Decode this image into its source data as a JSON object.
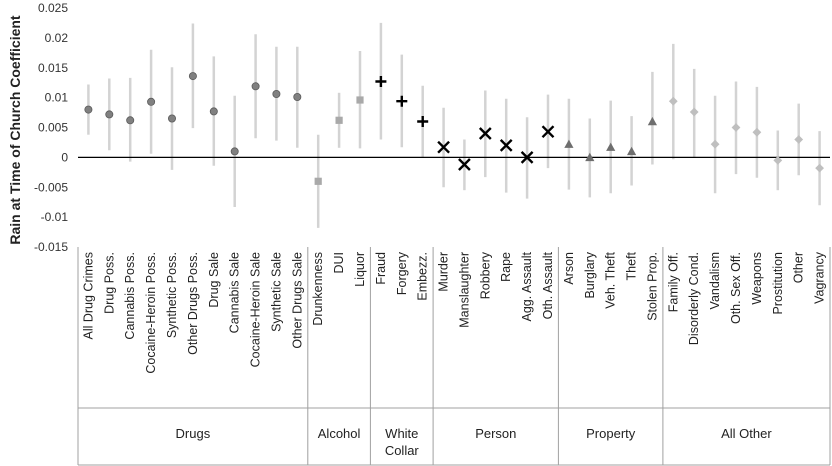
{
  "chart_data": {
    "type": "scatter",
    "ylabel": "Rain at Time of Church Coefficient",
    "ylim": [
      -0.015,
      0.025
    ],
    "yticks": [
      "0.025",
      "0.02",
      "0.015",
      "0.01",
      "0.005",
      "0",
      "-0.005",
      "-0.01",
      "-0.015"
    ],
    "grid": false,
    "groups": [
      {
        "name": "Drugs",
        "lines": [
          "Drugs"
        ],
        "marker": "circle",
        "color": "#808080",
        "items": [
          {
            "label": "All Drug Crimes",
            "value": 0.008,
            "low": 0.0038,
            "high": 0.0122
          },
          {
            "label": "Drug Poss.",
            "value": 0.0072,
            "low": 0.0012,
            "high": 0.0132
          },
          {
            "label": "Cannabis Poss.",
            "value": 0.0062,
            "low": -0.0007,
            "high": 0.0133
          },
          {
            "label": "Cocaine-Heroin Poss.",
            "value": 0.0093,
            "low": 0.0006,
            "high": 0.018
          },
          {
            "label": "Synthetic Poss.",
            "value": 0.0065,
            "low": -0.0021,
            "high": 0.0151
          },
          {
            "label": "Other Drugs Poss.",
            "value": 0.0136,
            "low": 0.0049,
            "high": 0.0224
          },
          {
            "label": "Drug Sale",
            "value": 0.0077,
            "low": -0.0014,
            "high": 0.0169
          },
          {
            "label": "Cannabis Sale",
            "value": 0.001,
            "low": -0.0083,
            "high": 0.0103
          },
          {
            "label": "Cocaine-Heroin Sale",
            "value": 0.0119,
            "low": 0.0032,
            "high": 0.0206
          },
          {
            "label": "Synthetic Sale",
            "value": 0.0106,
            "low": 0.0028,
            "high": 0.0185
          },
          {
            "label": "Other Drugs Sale",
            "value": 0.0101,
            "low": 0.0016,
            "high": 0.0185
          }
        ]
      },
      {
        "name": "Alcohol",
        "lines": [
          "Alcohol"
        ],
        "marker": "square",
        "color": "#a9a9a9",
        "items": [
          {
            "label": "Drunkenness",
            "value": -0.004,
            "low": -0.0118,
            "high": 0.0038
          },
          {
            "label": "DUI",
            "value": 0.0062,
            "low": 0.0016,
            "high": 0.0108
          },
          {
            "label": "Liquor",
            "value": 0.0096,
            "low": 0.0015,
            "high": 0.0178
          }
        ]
      },
      {
        "name": "White Collar",
        "lines": [
          "White",
          "Collar"
        ],
        "marker": "plus",
        "color": "#000000",
        "items": [
          {
            "label": "Fraud",
            "value": 0.0127,
            "low": 0.003,
            "high": 0.0225
          },
          {
            "label": "Forgery",
            "value": 0.0094,
            "low": 0.0017,
            "high": 0.0172
          },
          {
            "label": "Embezz.",
            "value": 0.006,
            "low": 0.0,
            "high": 0.012
          }
        ]
      },
      {
        "name": "Person",
        "lines": [
          "Person"
        ],
        "marker": "x",
        "color": "#000000",
        "items": [
          {
            "label": "Murder",
            "value": 0.0017,
            "low": -0.005,
            "high": 0.0083
          },
          {
            "label": "Manslaughter",
            "value": -0.0012,
            "low": -0.0055,
            "high": 0.003
          },
          {
            "label": "Robbery",
            "value": 0.004,
            "low": -0.0033,
            "high": 0.0112
          },
          {
            "label": "Rape",
            "value": 0.002,
            "low": -0.0059,
            "high": 0.0098
          },
          {
            "label": "Agg. Assault",
            "value": 0.0,
            "low": -0.0069,
            "high": 0.0067
          },
          {
            "label": "Oth. Assault",
            "value": 0.0043,
            "low": -0.0018,
            "high": 0.0105
          }
        ]
      },
      {
        "name": "Property",
        "lines": [
          "Property"
        ],
        "marker": "triangle",
        "color": "#6e6e6e",
        "items": [
          {
            "label": "Arson",
            "value": 0.0022,
            "low": -0.0054,
            "high": 0.0098
          },
          {
            "label": "Burglary",
            "value": 0.0,
            "low": -0.0067,
            "high": 0.0065
          },
          {
            "label": "Veh. Theft",
            "value": 0.0017,
            "low": -0.006,
            "high": 0.0095
          },
          {
            "label": "Theft",
            "value": 0.001,
            "low": -0.0047,
            "high": 0.0069
          },
          {
            "label": "Stolen Prop.",
            "value": 0.006,
            "low": -0.0012,
            "high": 0.0143
          }
        ]
      },
      {
        "name": "All Other",
        "lines": [
          "All Other"
        ],
        "marker": "diamond",
        "color": "#bfbfbf",
        "items": [
          {
            "label": "Family Off.",
            "value": 0.0094,
            "low": -0.0003,
            "high": 0.019
          },
          {
            "label": "Disorderly Cond.",
            "value": 0.0076,
            "low": 0.0,
            "high": 0.0148
          },
          {
            "label": "Vandalism",
            "value": 0.0022,
            "low": -0.006,
            "high": 0.0103
          },
          {
            "label": "Oth. Sex Off.",
            "value": 0.005,
            "low": -0.0028,
            "high": 0.0127
          },
          {
            "label": "Weapons",
            "value": 0.0042,
            "low": -0.0034,
            "high": 0.0118
          },
          {
            "label": "Prostitution",
            "value": -0.0005,
            "low": -0.0055,
            "high": 0.0045
          },
          {
            "label": "Other",
            "value": 0.003,
            "low": -0.003,
            "high": 0.009
          },
          {
            "label": "Vagrancy",
            "value": -0.0018,
            "low": -0.008,
            "high": 0.0044
          }
        ]
      }
    ]
  }
}
